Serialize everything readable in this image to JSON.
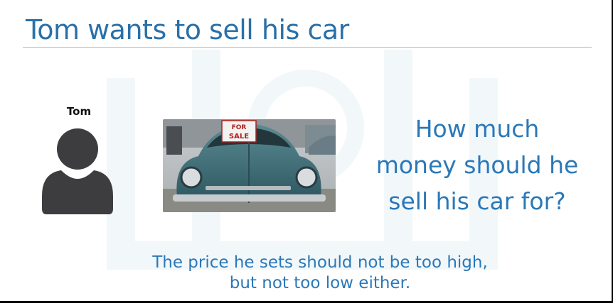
{
  "slide": {
    "title": "Tom wants to sell his car",
    "person": {
      "name": "Tom",
      "icon": "person-silhouette-icon"
    },
    "photo": {
      "sign_line1": "FOR",
      "sign_line2": "SALE"
    },
    "question": {
      "line1": "How much",
      "line2": "money should he",
      "line3": "sell his car for?"
    },
    "note": {
      "line1": "The price he sets should not be too high,",
      "line2": "but not too low either."
    }
  },
  "colors": {
    "title": "#2a70a8",
    "accent_text": "#2a78b8",
    "icon": "#3d3d3f",
    "car_body": "#3f6e78"
  }
}
